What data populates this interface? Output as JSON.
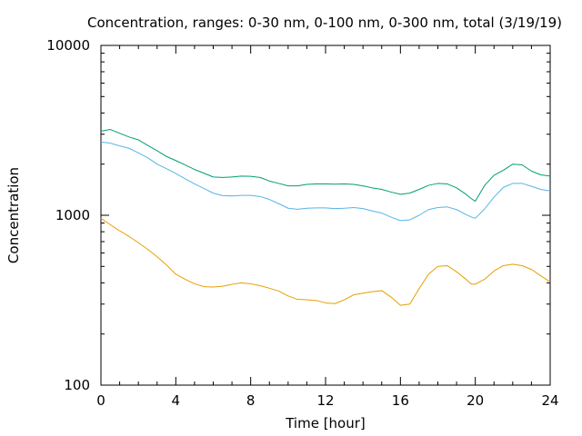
{
  "chart_data": {
    "type": "line",
    "title": "Concentration, ranges: 0-30 nm, 0-100 nm, 0-300 nm, total (3/19/19)",
    "xlabel": "Time [hour]",
    "ylabel": "Concentration",
    "xlim": [
      0,
      24
    ],
    "ylim": [
      100,
      10000
    ],
    "yscale": "log",
    "grid": false,
    "legend": "none",
    "x_ticks": [
      0,
      4,
      8,
      12,
      16,
      20,
      24
    ],
    "x_tick_labels": [
      "0",
      "4",
      "8",
      "12",
      "16",
      "20",
      "24"
    ],
    "y_ticks": [
      100,
      1000,
      10000
    ],
    "y_tick_labels": [
      "100",
      "1000",
      "10000"
    ],
    "x": [
      0,
      0.5,
      1,
      1.5,
      2,
      2.5,
      3,
      3.5,
      4,
      4.5,
      5,
      5.5,
      6,
      6.5,
      7,
      7.5,
      8,
      8.5,
      9,
      9.5,
      10,
      10.5,
      11,
      11.5,
      12,
      12.5,
      13,
      13.5,
      14,
      14.5,
      15,
      15.5,
      16,
      16.5,
      17,
      17.5,
      18,
      18.5,
      19,
      19.5,
      19.8,
      20,
      20.5,
      21,
      21.5,
      22,
      22.5,
      23,
      23.5,
      24
    ],
    "series": [
      {
        "color": "#e69f00",
        "values": [
          960,
          880,
          810,
          750,
          690,
          630,
          570,
          510,
          450,
          420,
          395,
          380,
          378,
          382,
          392,
          400,
          395,
          385,
          372,
          358,
          335,
          320,
          318,
          315,
          305,
          302,
          318,
          340,
          348,
          355,
          360,
          330,
          295,
          300,
          370,
          450,
          500,
          505,
          465,
          420,
          393,
          393,
          420,
          470,
          505,
          515,
          505,
          480,
          440,
          405
        ]
      },
      {
        "color": "#56b4e9",
        "values": [
          2700,
          2660,
          2560,
          2480,
          2330,
          2180,
          2000,
          1880,
          1760,
          1640,
          1530,
          1440,
          1350,
          1305,
          1300,
          1310,
          1310,
          1290,
          1240,
          1170,
          1100,
          1085,
          1100,
          1105,
          1105,
          1095,
          1100,
          1110,
          1095,
          1060,
          1030,
          975,
          930,
          940,
          1000,
          1080,
          1110,
          1120,
          1080,
          1010,
          975,
          960,
          1090,
          1280,
          1460,
          1540,
          1540,
          1480,
          1420,
          1390
        ]
      },
      {
        "color": "#009e73",
        "values": [
          3130,
          3200,
          3040,
          2890,
          2780,
          2580,
          2400,
          2220,
          2100,
          1980,
          1860,
          1770,
          1680,
          1670,
          1680,
          1700,
          1695,
          1670,
          1590,
          1540,
          1490,
          1490,
          1520,
          1530,
          1530,
          1525,
          1530,
          1520,
          1490,
          1450,
          1420,
          1370,
          1330,
          1350,
          1420,
          1500,
          1540,
          1530,
          1450,
          1330,
          1250,
          1210,
          1500,
          1720,
          1840,
          2000,
          1980,
          1820,
          1730,
          1700
        ]
      }
    ]
  }
}
